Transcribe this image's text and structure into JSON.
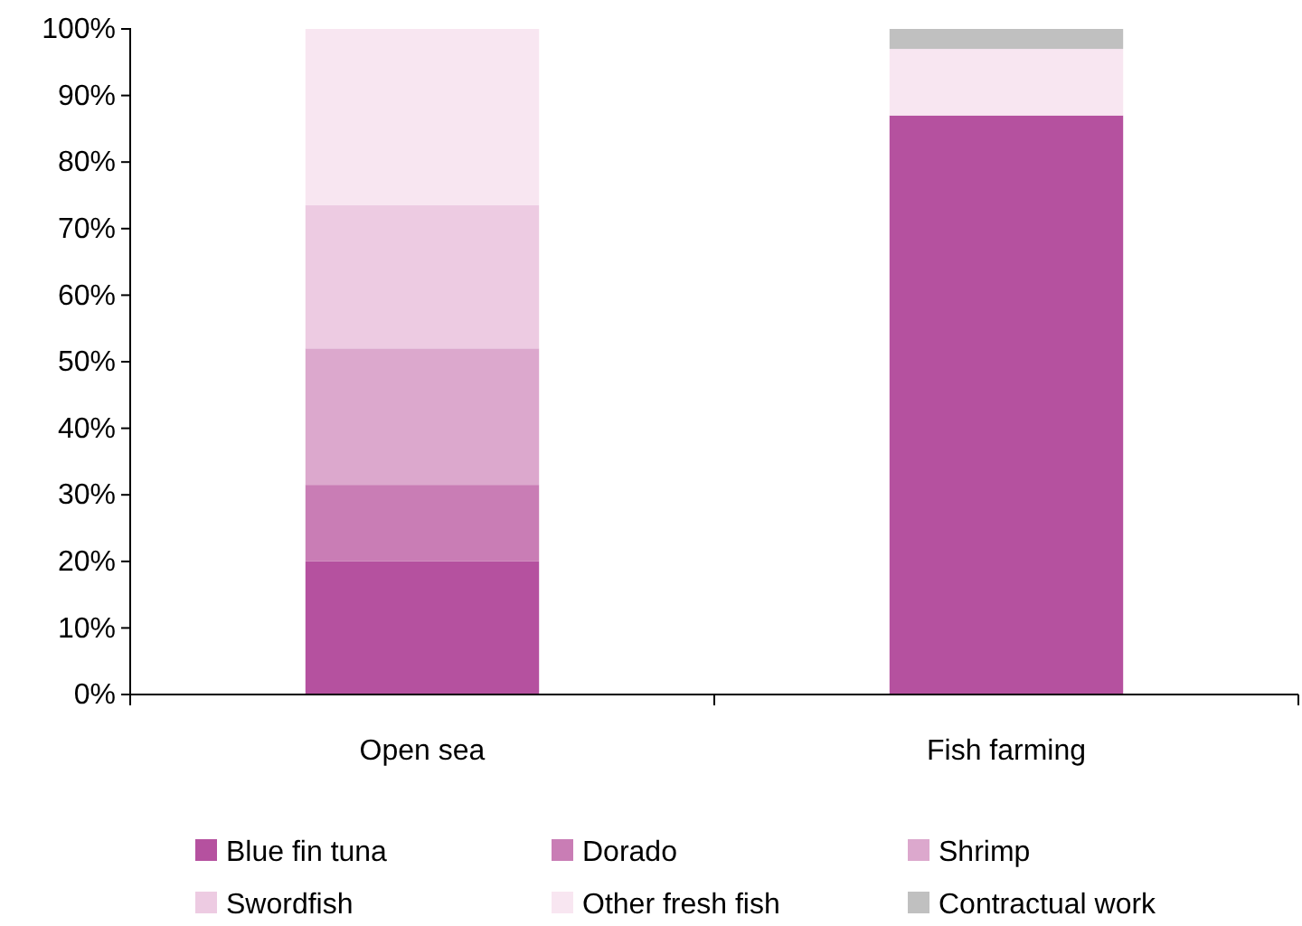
{
  "chart_data": {
    "type": "bar",
    "stacked": true,
    "categories": [
      "Open sea",
      "Fish farming"
    ],
    "series": [
      {
        "name": "Blue fin tuna",
        "color": "#b5519f",
        "values": [
          20,
          87
        ]
      },
      {
        "name": "Dorado",
        "color": "#c97db5",
        "values": [
          11.5,
          0
        ]
      },
      {
        "name": "Shrimp",
        "color": "#dca8cd",
        "values": [
          20.5,
          0
        ]
      },
      {
        "name": "Swordfish",
        "color": "#edcbe2",
        "values": [
          21.5,
          0
        ]
      },
      {
        "name": "Other fresh fish",
        "color": "#f8e6f1",
        "values": [
          26.5,
          10
        ]
      },
      {
        "name": "Contractual work",
        "color": "#c0c0c0",
        "values": [
          0,
          3
        ]
      }
    ],
    "ylim": [
      0,
      100
    ],
    "yticks": [
      {
        "value": 0,
        "label": "0%"
      },
      {
        "value": 10,
        "label": "10%"
      },
      {
        "value": 20,
        "label": "20%"
      },
      {
        "value": 30,
        "label": "30%"
      },
      {
        "value": 40,
        "label": "40%"
      },
      {
        "value": 50,
        "label": "50%"
      },
      {
        "value": 60,
        "label": "60%"
      },
      {
        "value": 70,
        "label": "70%"
      },
      {
        "value": 80,
        "label": "80%"
      },
      {
        "value": 90,
        "label": "90%"
      },
      {
        "value": 100,
        "label": "100%"
      }
    ],
    "grid": false,
    "legend": "bottom"
  }
}
